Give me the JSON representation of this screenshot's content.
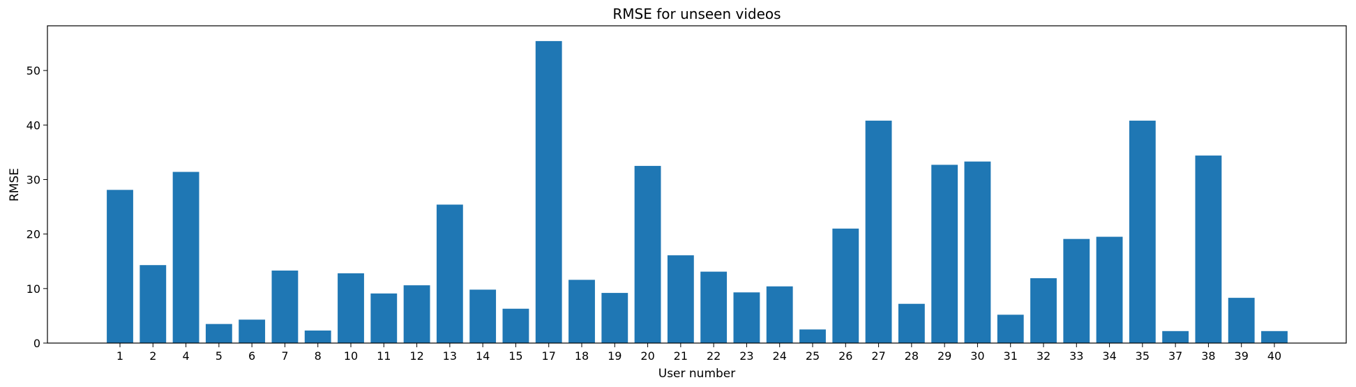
{
  "chart_data": {
    "type": "bar",
    "title": "RMSE for unseen videos",
    "xlabel": "User number",
    "ylabel": "RMSE",
    "categories": [
      "1",
      "2",
      "4",
      "5",
      "6",
      "7",
      "8",
      "10",
      "11",
      "12",
      "13",
      "14",
      "15",
      "17",
      "18",
      "19",
      "20",
      "21",
      "22",
      "23",
      "24",
      "25",
      "26",
      "27",
      "28",
      "29",
      "30",
      "31",
      "32",
      "33",
      "34",
      "35",
      "37",
      "38",
      "39",
      "40"
    ],
    "values": [
      28.1,
      14.3,
      31.4,
      3.5,
      4.3,
      13.3,
      2.3,
      12.8,
      9.1,
      10.6,
      25.4,
      9.8,
      6.3,
      55.4,
      11.6,
      9.2,
      32.5,
      16.1,
      13.1,
      9.3,
      10.4,
      2.5,
      21.0,
      40.8,
      7.2,
      32.7,
      33.3,
      5.2,
      11.9,
      19.1,
      19.5,
      40.8,
      2.2,
      34.4,
      8.3,
      2.2
    ],
    "yticks": [
      0,
      10,
      20,
      30,
      40,
      50
    ],
    "ylim": [
      0,
      58.2
    ],
    "grid": false,
    "bar_color": "#1f77b4"
  }
}
